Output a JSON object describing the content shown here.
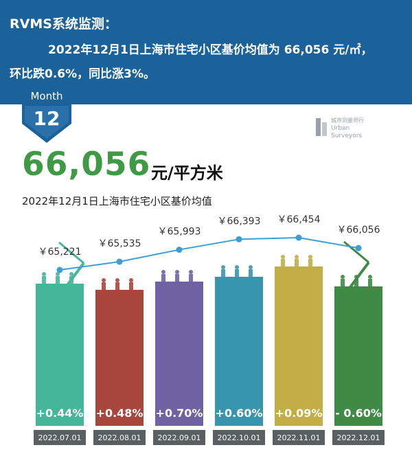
{
  "header": {
    "title": "RVMS系统监测：",
    "line2": "2022年12月1日上海市住宅小区基价均值为  66,056 元/㎡，",
    "line3": "环比跌0.6%，同比涨3%。"
  },
  "badge": {
    "label": "Month",
    "number": "12"
  },
  "logo": {
    "line1": "城市测量师行",
    "line2": "Urban",
    "line3": "Surveyors"
  },
  "headline": {
    "value": "66,056",
    "unit": "元/平方米",
    "subtitle": "2022年12月1日上海市住宅小区基价均值"
  },
  "colors": {
    "banner": "#1b629a",
    "line": "#3a9fd8",
    "bars": [
      "#45b69a",
      "#a8453d",
      "#6e62a3",
      "#3796ad",
      "#c3ad45",
      "#3f8a44"
    ]
  },
  "chart_data": {
    "type": "bar",
    "categories": [
      "2022.07.01",
      "2022.08.01",
      "2022.09.01",
      "2022.10.01",
      "2022.11.01",
      "2022.12.01"
    ],
    "values": [
      65221,
      65535,
      65993,
      66393,
      66454,
      66056
    ],
    "value_labels": [
      "￥65,221",
      "￥65,535",
      "￥65,993",
      "￥66,393",
      "￥66,454",
      "￥66,056"
    ],
    "changes": [
      "+0.44%",
      "+0.48%",
      "+0.70%",
      "+0.60%",
      "+0.09%",
      "- 0.60%"
    ],
    "legend": false,
    "grid": false
  }
}
